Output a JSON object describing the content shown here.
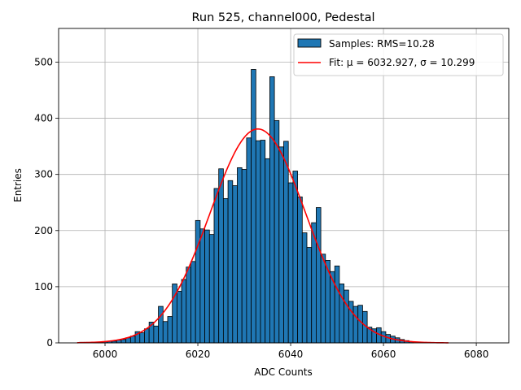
{
  "chart_data": {
    "type": "bar",
    "title": "Run 525, channel000, Pedestal",
    "xlabel": "ADC Counts",
    "ylabel": "Entries",
    "xlim": [
      5990,
      6087
    ],
    "ylim": [
      0,
      560
    ],
    "xticks": [
      6000,
      6020,
      6040,
      6060,
      6080
    ],
    "yticks": [
      0,
      100,
      200,
      300,
      400,
      500
    ],
    "grid": true,
    "legend_position": "top-right",
    "bin_width": 1,
    "series": [
      {
        "name": "Samples: RMS=10.28",
        "kind": "histogram",
        "color": "#1f77b4",
        "edgecolor": "#000000",
        "x": [
          5995,
          5996,
          5997,
          5998,
          5999,
          6000,
          6001,
          6002,
          6003,
          6004,
          6005,
          6006,
          6007,
          6008,
          6009,
          6010,
          6011,
          6012,
          6013,
          6014,
          6015,
          6016,
          6017,
          6018,
          6019,
          6020,
          6021,
          6022,
          6023,
          6024,
          6025,
          6026,
          6027,
          6028,
          6029,
          6030,
          6031,
          6032,
          6033,
          6034,
          6035,
          6036,
          6037,
          6038,
          6039,
          6040,
          6041,
          6042,
          6043,
          6044,
          6045,
          6046,
          6047,
          6048,
          6049,
          6050,
          6051,
          6052,
          6053,
          6054,
          6055,
          6056,
          6057,
          6058,
          6059,
          6060,
          6061,
          6062,
          6063,
          6064,
          6065,
          6066
        ],
        "values": [
          1,
          1,
          0,
          1,
          1,
          2,
          3,
          3,
          5,
          6,
          9,
          12,
          20,
          18,
          25,
          37,
          30,
          65,
          38,
          47,
          105,
          92,
          113,
          135,
          145,
          218,
          203,
          201,
          193,
          275,
          310,
          257,
          289,
          280,
          312,
          309,
          365,
          487,
          360,
          361,
          328,
          474,
          396,
          349,
          359,
          285,
          306,
          260,
          196,
          170,
          214,
          241,
          158,
          147,
          127,
          137,
          105,
          94,
          74,
          65,
          67,
          56,
          28,
          25,
          27,
          20,
          15,
          12,
          9,
          6,
          4,
          2
        ]
      },
      {
        "name": "Fit: μ = 6032.927, σ = 10.299",
        "kind": "gaussian",
        "color": "#ff0000",
        "mu": 6032.927,
        "sigma": 10.299,
        "amplitude": 381,
        "x_range": [
          5994,
          6074
        ]
      }
    ]
  }
}
